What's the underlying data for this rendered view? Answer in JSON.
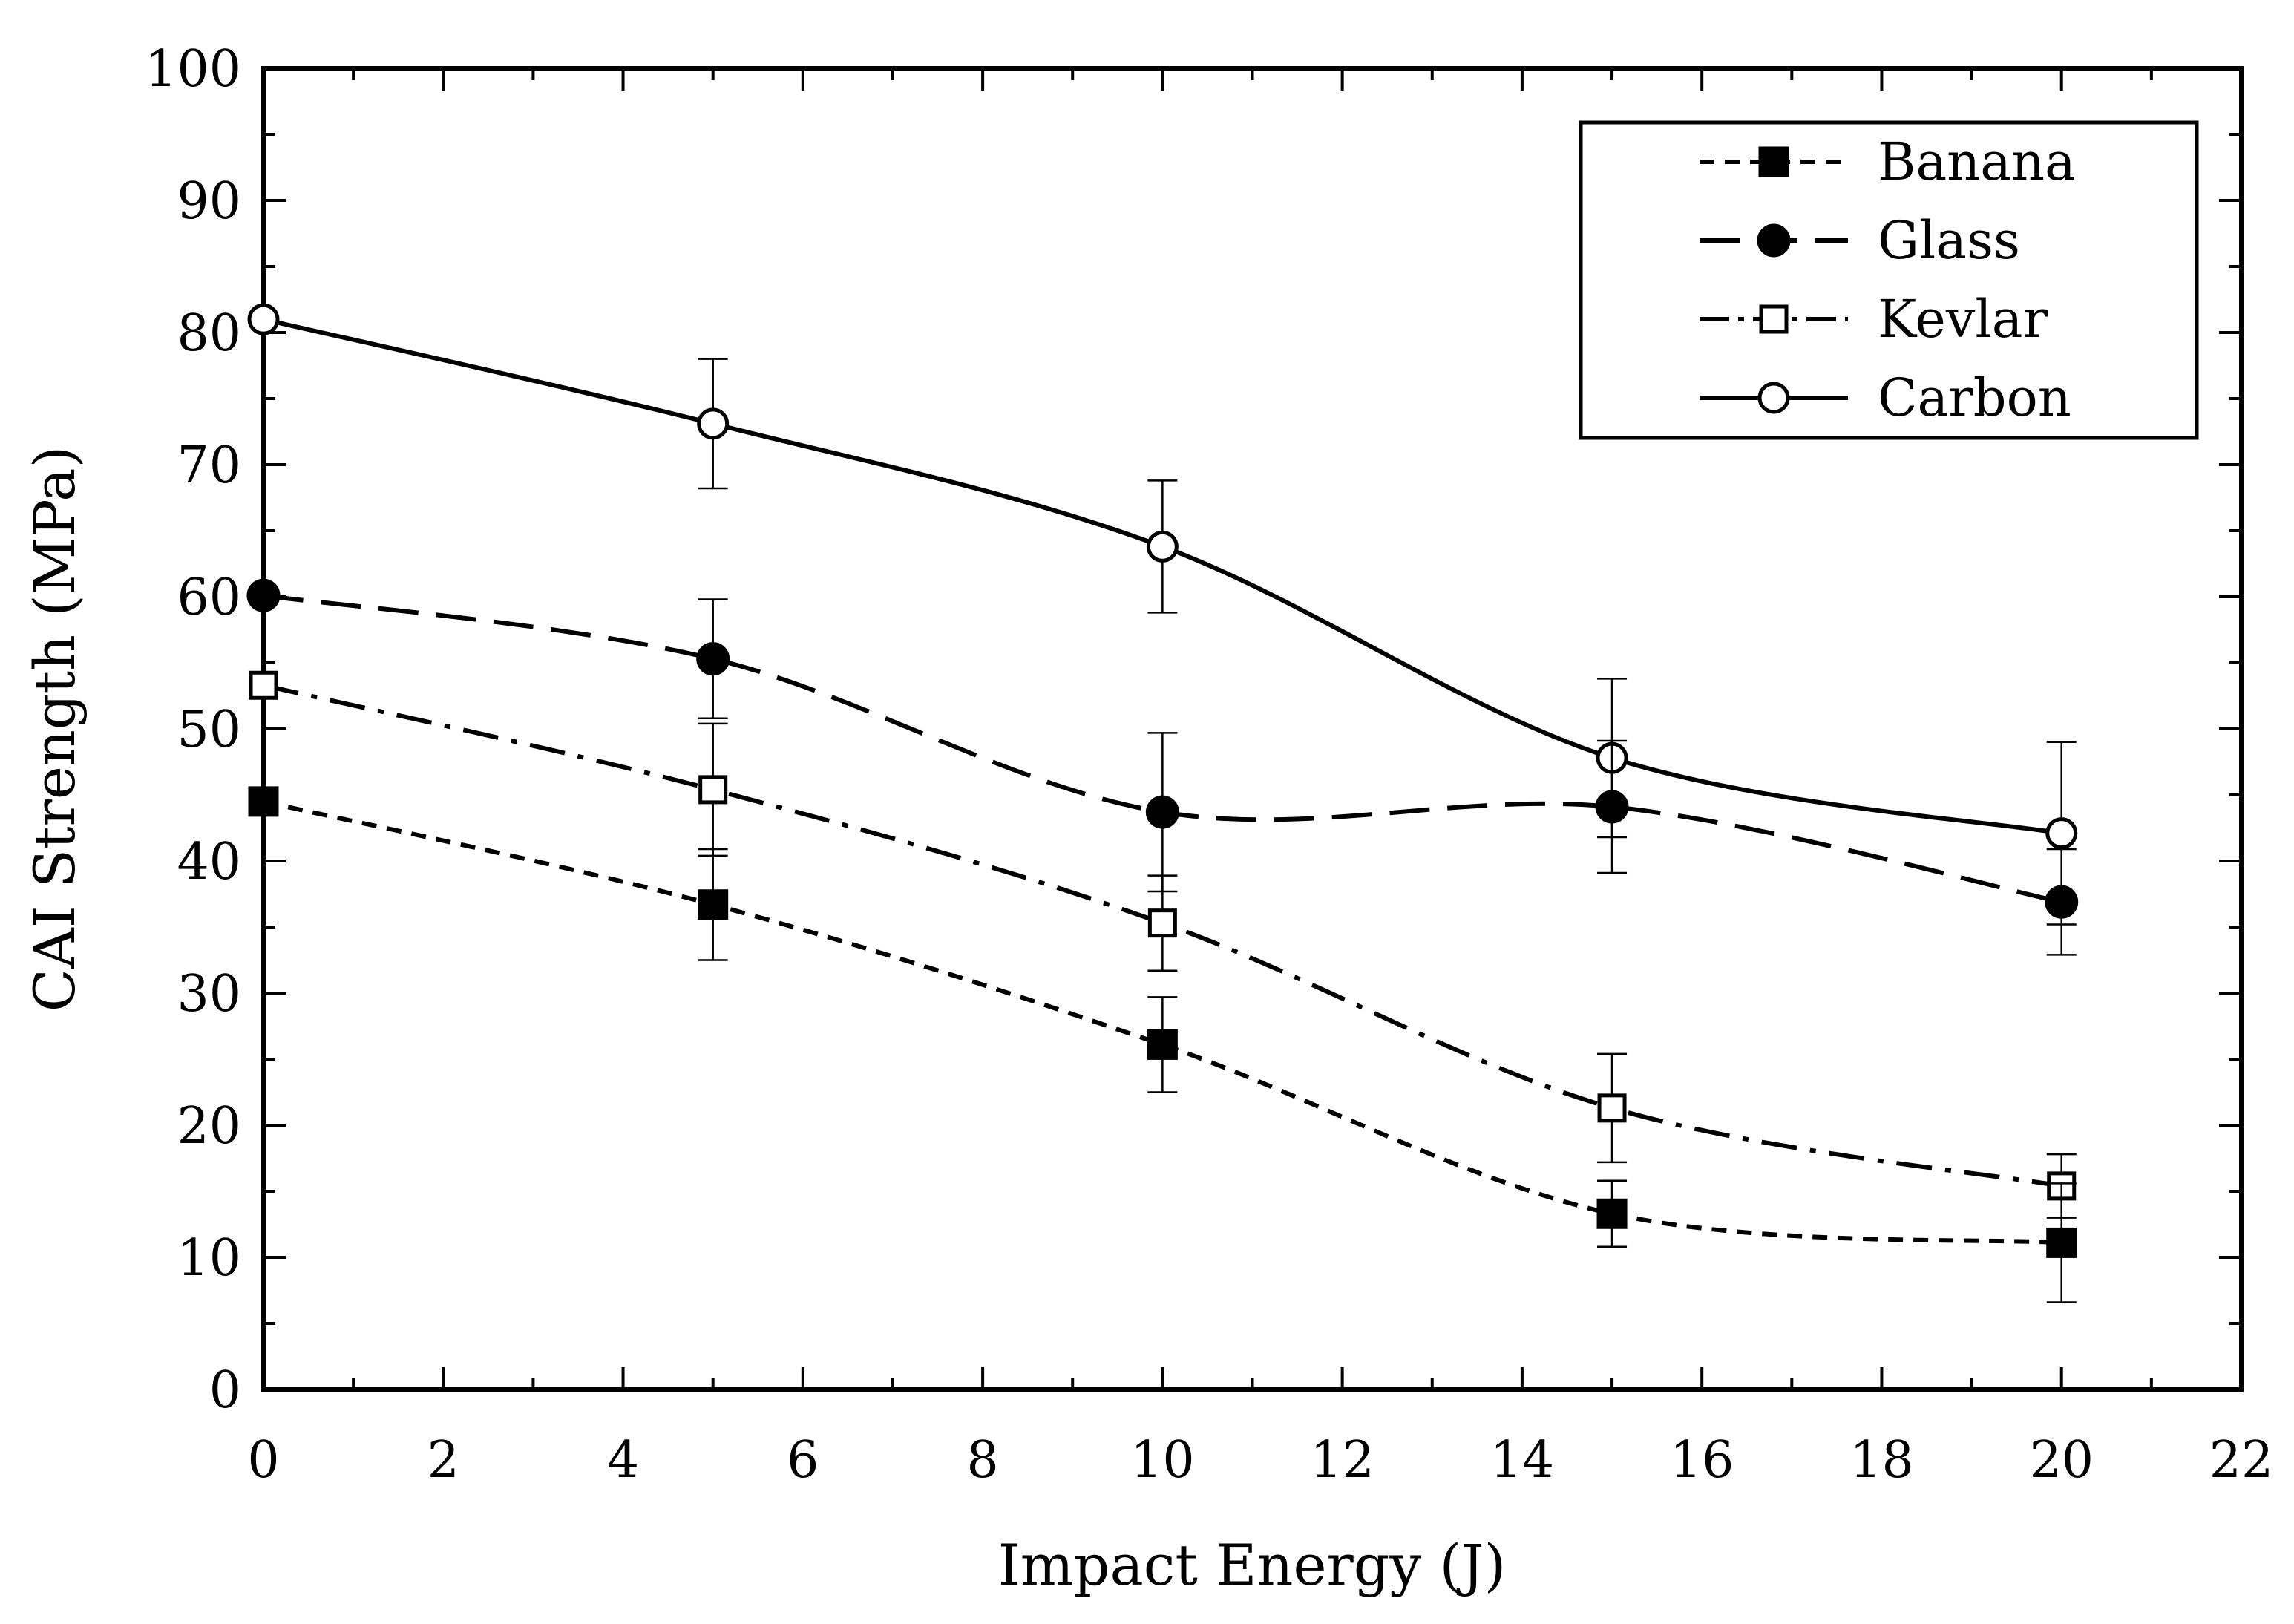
{
  "chart_data": {
    "type": "line",
    "xlabel": "Impact Energy (J)",
    "ylabel": "CAI Strength (MPa)",
    "xlim": [
      0,
      22
    ],
    "ylim": [
      0,
      100
    ],
    "x_ticks": [
      0,
      2,
      4,
      6,
      8,
      10,
      12,
      14,
      16,
      18,
      20,
      22
    ],
    "y_ticks": [
      0,
      10,
      20,
      30,
      40,
      50,
      60,
      70,
      80,
      90,
      100
    ],
    "grid": false,
    "legend_position": "top-right",
    "x": [
      0,
      5,
      10,
      15,
      20
    ],
    "series": [
      {
        "name": "Banana",
        "marker": "filled-square",
        "line_style": "short-dash",
        "values": [
          44.5,
          36.7,
          26.1,
          13.3,
          11.1
        ],
        "error": [
          null,
          4.2,
          3.6,
          2.5,
          4.5
        ]
      },
      {
        "name": "Glass",
        "marker": "filled-circle",
        "line_style": "long-dash",
        "values": [
          60.1,
          55.3,
          43.7,
          44.1,
          36.9
        ],
        "error": [
          null,
          4.5,
          6.0,
          5.0,
          4.0
        ]
      },
      {
        "name": "Kevlar",
        "marker": "open-square",
        "line_style": "dash-dot",
        "values": [
          53.3,
          45.4,
          35.3,
          21.3,
          15.4
        ],
        "error": [
          null,
          5.0,
          3.6,
          4.1,
          2.4
        ]
      },
      {
        "name": "Carbon",
        "marker": "open-circle",
        "line_style": "solid",
        "values": [
          81.0,
          73.1,
          63.8,
          47.8,
          42.1
        ],
        "error": [
          null,
          4.9,
          5.0,
          6.0,
          6.9
        ]
      }
    ]
  }
}
